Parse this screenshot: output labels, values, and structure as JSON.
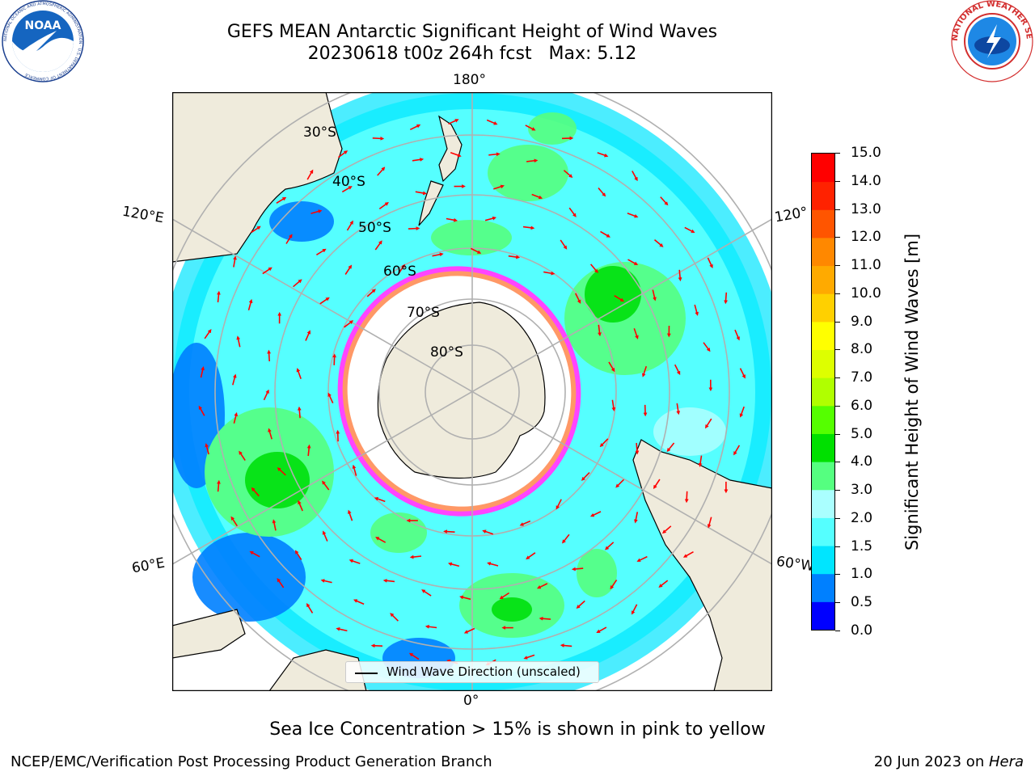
{
  "title": {
    "line1": "GEFS MEAN Antarctic Significant Height of Wind Waves",
    "line2": "20230618 t00z 264h fcst   Max: 5.12"
  },
  "logos": {
    "left": {
      "icon": "noaa-logo",
      "text": "NOAA",
      "ring_text": "NATIONAL OCEANIC AND ATMOSPHERIC ADMINISTRATION · U.S. DEPARTMENT OF COMMERCE"
    },
    "right": {
      "icon": "nws-logo",
      "ring_text": "NATIONAL WEATHER SERVICE"
    }
  },
  "map": {
    "projection": "south-polar-stereographic",
    "longitude_labels": {
      "top": "180°",
      "left_upper": "120°E",
      "left_lower": "60°E",
      "right_upper": "120°",
      "right_lower": "60°W",
      "bottom": "0°"
    },
    "latitude_labels": [
      "30°S",
      "40°S",
      "50°S",
      "60°S",
      "70°S",
      "80°S"
    ],
    "legend": "Wind Wave Direction (unscaled)",
    "colors": {
      "land": "#efebdc",
      "ice_edge": "#ff44ff",
      "arrows": "#ff0000",
      "grid": "#b0b0b0"
    }
  },
  "colorbar": {
    "label": "Significant Height of Wind Waves [m]",
    "ticks": [
      "0.0",
      "0.5",
      "1.0",
      "1.5",
      "2.0",
      "3.0",
      "4.0",
      "5.0",
      "6.0",
      "7.0",
      "8.0",
      "9.0",
      "10.0",
      "11.0",
      "12.0",
      "13.0",
      "14.0",
      "15.0"
    ],
    "colors": [
      "#0000ff",
      "#0080ff",
      "#00e5ff",
      "#55ffff",
      "#aaffff",
      "#55ff80",
      "#00e000",
      "#55ff00",
      "#b0ff00",
      "#ddff00",
      "#ffff00",
      "#ffd000",
      "#ffaa00",
      "#ff8800",
      "#ff5500",
      "#ff2200",
      "#ff0000"
    ]
  },
  "footer": {
    "note": "Sea Ice Concentration > 15% is shown in pink to yellow",
    "left": "NCEP/EMC/Verification Post Processing Product Generation Branch",
    "right_prefix": "20 Jun 2023 on ",
    "right_host": "Hera"
  }
}
